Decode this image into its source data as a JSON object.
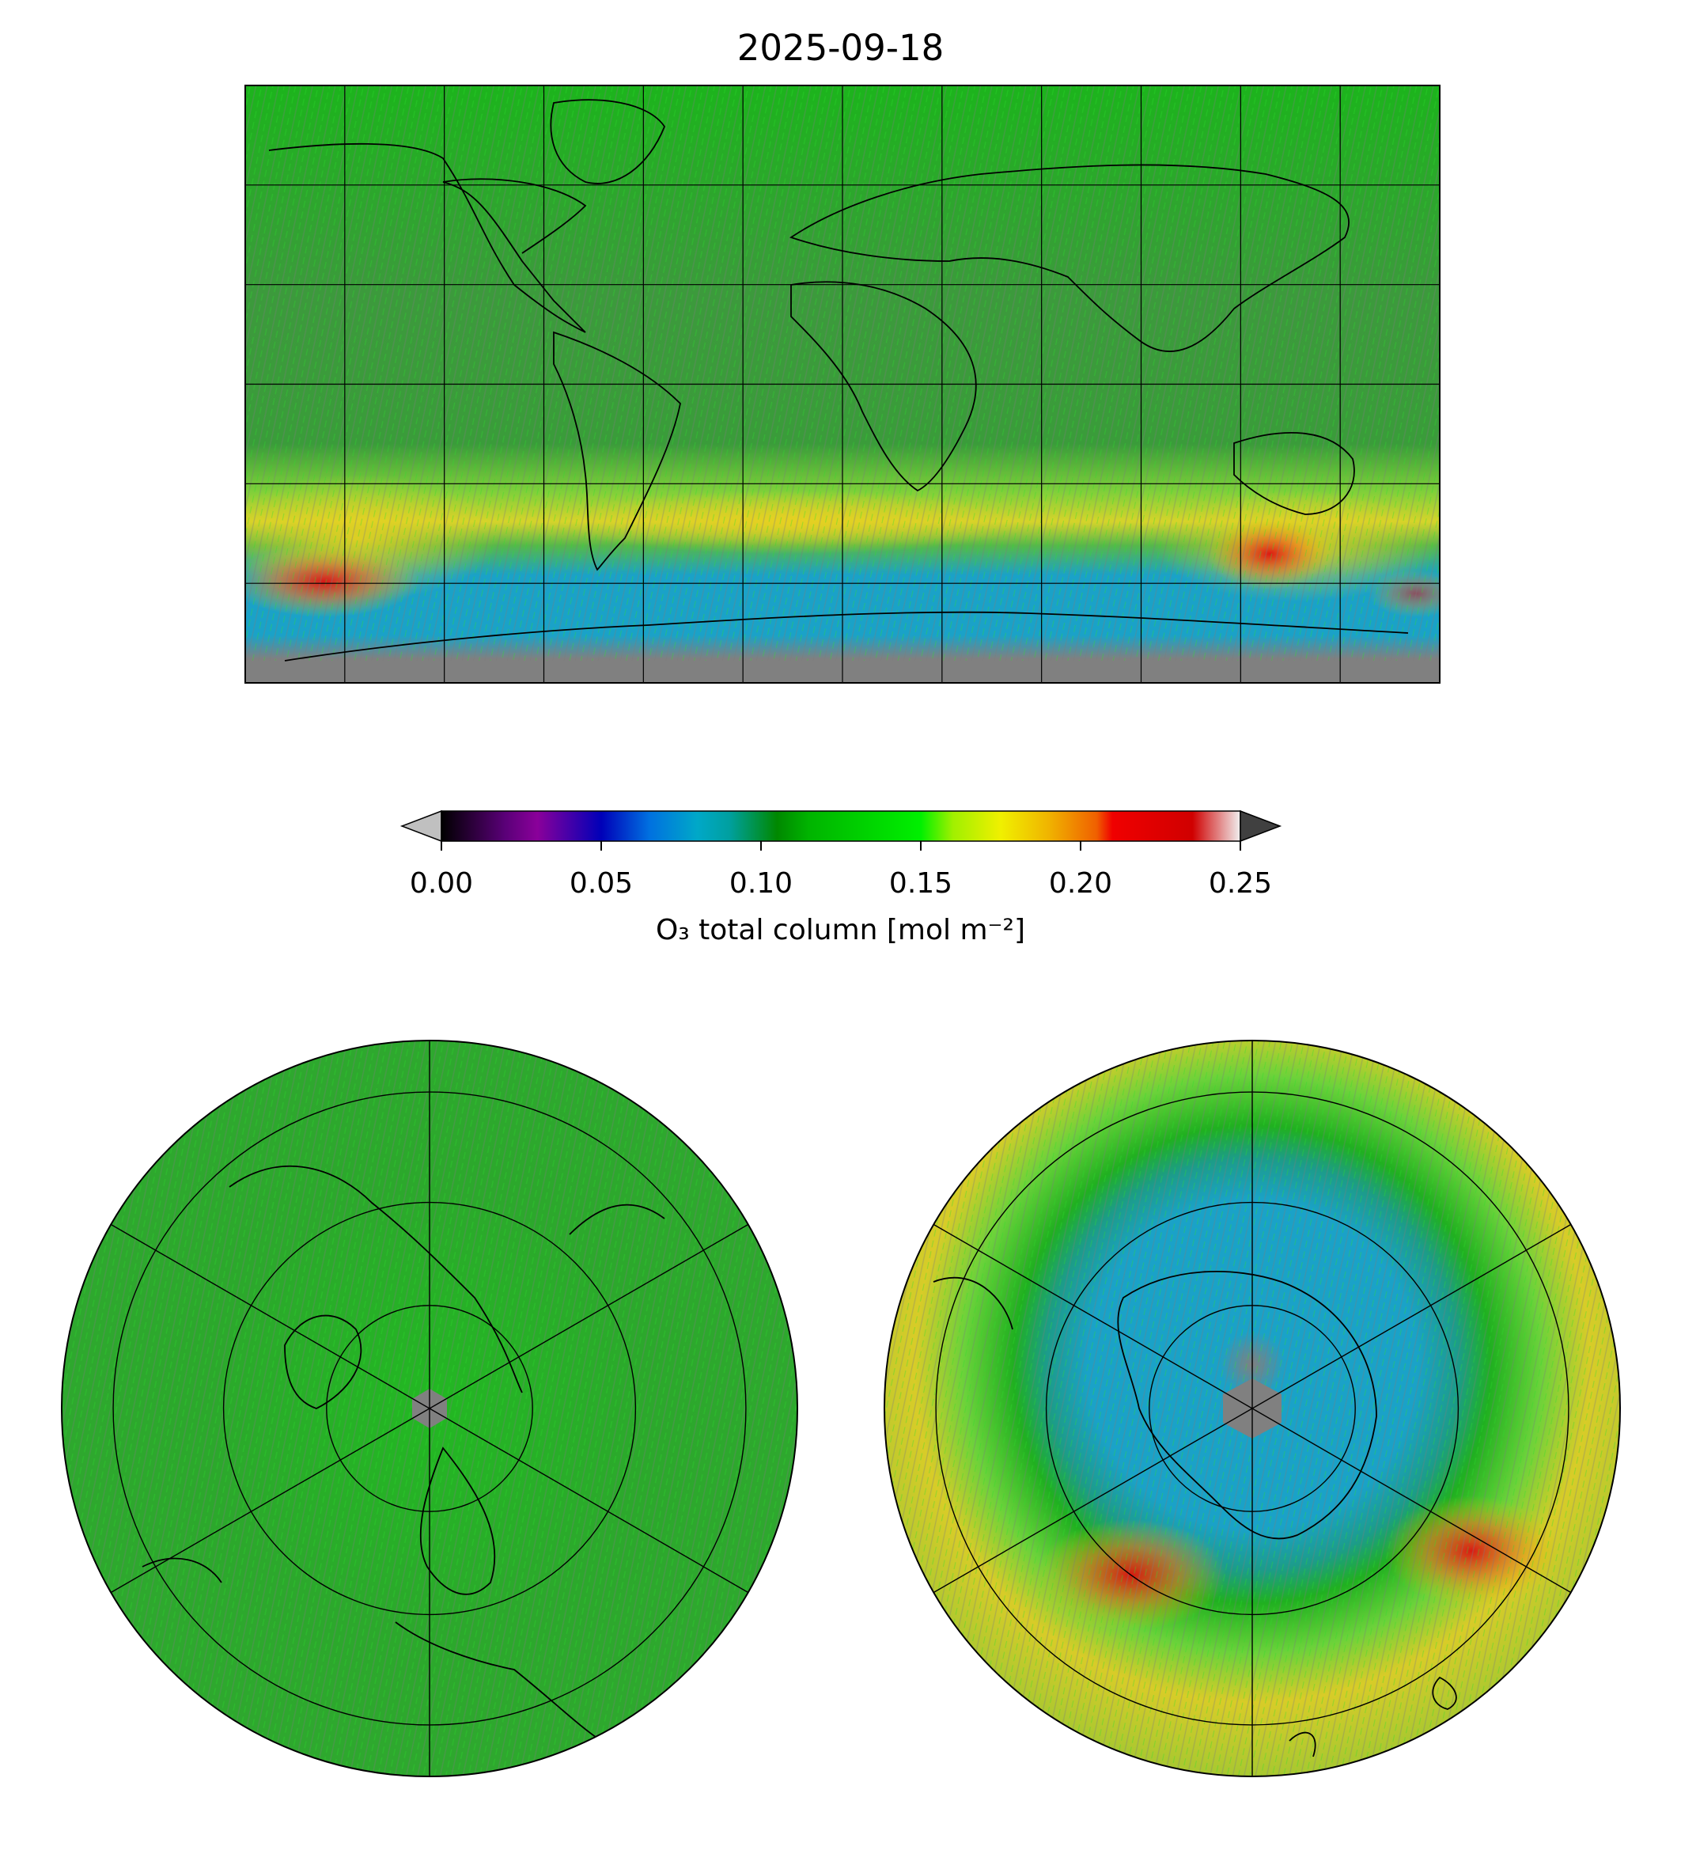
{
  "title": "2025-09-18",
  "colorbar": {
    "label": "O₃ total column [mol m⁻²]",
    "ticks": [
      "0.00",
      "0.05",
      "0.10",
      "0.15",
      "0.20",
      "0.25"
    ],
    "range": [
      0.0,
      0.25
    ],
    "extend": "both",
    "under_color": "#c0c0c0",
    "over_color": "#404040",
    "colormap": [
      [
        0.0,
        "#000000"
      ],
      [
        0.02,
        "#5a0078"
      ],
      [
        0.03,
        "#8a009a"
      ],
      [
        0.05,
        "#0000b8"
      ],
      [
        0.065,
        "#0070e0"
      ],
      [
        0.08,
        "#00a8c8"
      ],
      [
        0.09,
        "#00a0a0"
      ],
      [
        0.105,
        "#008800"
      ],
      [
        0.115,
        "#00b400"
      ],
      [
        0.15,
        "#00f000"
      ],
      [
        0.16,
        "#a0f000"
      ],
      [
        0.175,
        "#f0f000"
      ],
      [
        0.19,
        "#f0b400"
      ],
      [
        0.205,
        "#f06000"
      ],
      [
        0.21,
        "#f00000"
      ],
      [
        0.235,
        "#d00000"
      ],
      [
        0.25,
        "#f0f0f0"
      ]
    ]
  },
  "missing_color": "#808080",
  "maps": {
    "global": {
      "projection": "plate-carree",
      "lon_range": [
        -180,
        180
      ],
      "lat_range": [
        -90,
        90
      ],
      "gridlines_deg": 30
    },
    "north_polar": {
      "projection": "north-polar-stereographic",
      "gridlines_deg": 30
    },
    "south_polar": {
      "projection": "south-polar-stereographic",
      "gridlines_deg": 30
    }
  }
}
